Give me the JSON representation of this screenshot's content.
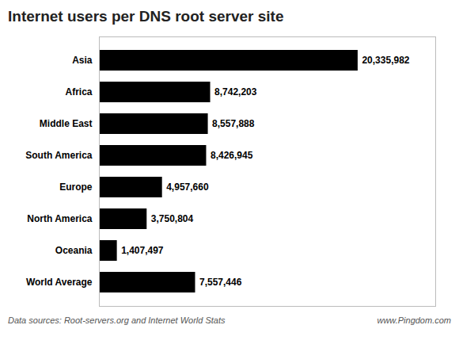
{
  "chart_data": {
    "type": "bar",
    "orientation": "horizontal",
    "title": "Internet users per DNS root server site",
    "categories": [
      "Asia",
      "Africa",
      "Middle East",
      "South America",
      "Europe",
      "North America",
      "Oceania",
      "World Average"
    ],
    "values": [
      20335982,
      8742203,
      8557888,
      8426945,
      4957660,
      3750804,
      1407497,
      7557446
    ],
    "value_labels": [
      "20,335,982",
      "8,742,203",
      "8,557,888",
      "8,426,945",
      "4,957,660",
      "3,750,804",
      "1,407,497",
      "7,557,446"
    ],
    "data_labels": true,
    "xlim": [
      0,
      26436776.6
    ],
    "tick_labels": "y",
    "grid": false,
    "annotations": [
      "Data sources: Root-servers.org and Internet World Stats",
      "www.Pingdom.com"
    ]
  }
}
